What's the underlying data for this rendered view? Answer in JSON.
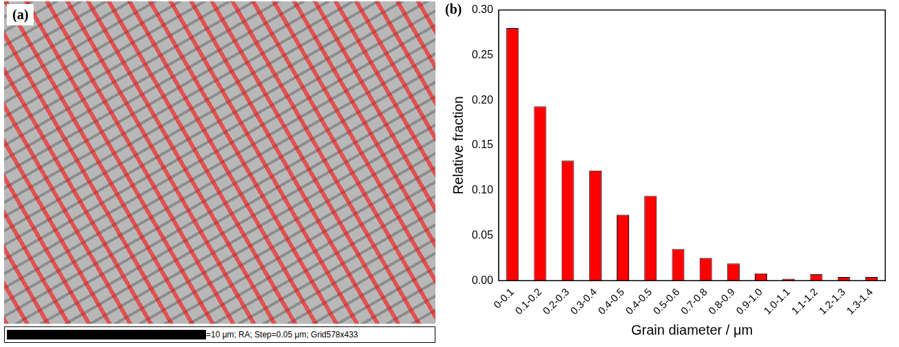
{
  "image_panel": {
    "label": "(a)",
    "scale_text": "=10 μm; RA; Step=0.05 μm; Grid578x433"
  },
  "chart_data": {
    "type": "bar",
    "panel_label": "(b)",
    "x_label": "Grain diameter / μm",
    "y_label": "Relative fraction",
    "categories": [
      "0-0.1",
      "0.1-0.2",
      "0.2-0.3",
      "0.3-0.4",
      "0.4-0.5",
      "0.4-0.5",
      "0.5-0.6",
      "0.7-0.8",
      "0.8-0.9",
      "0.9-1.0",
      "1.0-1.1",
      "1.1-1.2",
      "1.2-1.3",
      "1.3-1.4"
    ],
    "values": [
      0.28,
      0.193,
      0.133,
      0.122,
      0.073,
      0.094,
      0.035,
      0.025,
      0.019,
      0.008,
      0.002,
      0.007,
      0.004,
      0.004
    ],
    "color": "#ff0000",
    "ylim": [
      0,
      0.3
    ],
    "yticks": [
      {
        "value": 0,
        "label": "0.00"
      },
      {
        "value": 0.05,
        "label": "0.05"
      },
      {
        "value": 0.1,
        "label": "0.10"
      },
      {
        "value": 0.15,
        "label": "0.15"
      },
      {
        "value": 0.2,
        "label": "0.20"
      },
      {
        "value": 0.25,
        "label": "0.25"
      },
      {
        "value": 0.3,
        "label": "0.30"
      }
    ],
    "grid": false
  }
}
